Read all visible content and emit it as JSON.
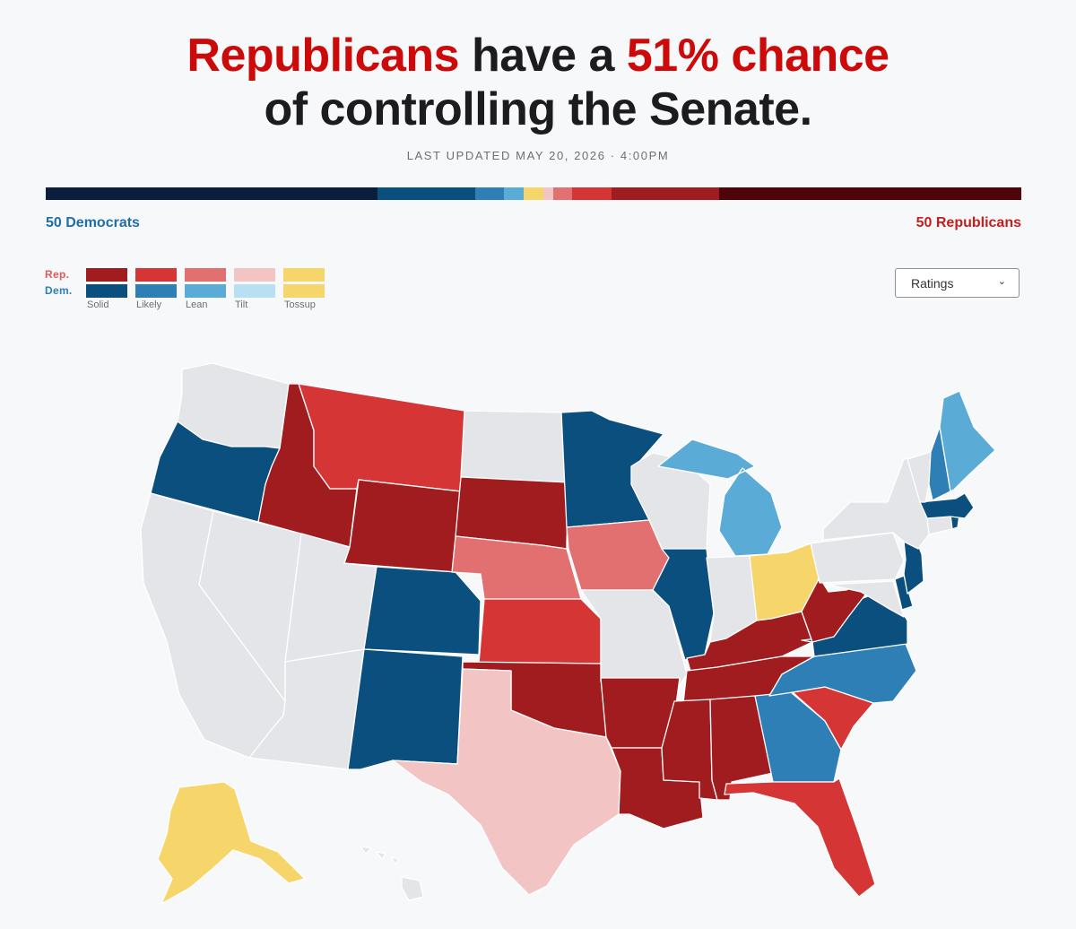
{
  "headline": {
    "line1_a": "Republicans",
    "line1_b": " have a ",
    "line1_c": "51% chance",
    "line2": "of controlling the Senate."
  },
  "last_updated": "LAST UPDATED MAY 20, 2026 · 4:00PM",
  "seat_summary": {
    "dem_label": "50 Democrats",
    "rep_label": "50 Republicans"
  },
  "legend": {
    "rep_label": "Rep.",
    "dem_label": "Dem.",
    "categories": [
      "Solid",
      "Likely",
      "Lean",
      "Tilt",
      "Tossup"
    ],
    "rep_colors": [
      "#a01c1e",
      "#d63535",
      "#e37070",
      "#f3c4c4",
      "#f6d66b"
    ],
    "dem_colors": [
      "#0b4f7e",
      "#2e7fb5",
      "#5aacd6",
      "#b8e0f3",
      "#f6d66b"
    ]
  },
  "view_select": {
    "value": "Ratings"
  },
  "colors": {
    "solid_r": "#a01c1e",
    "likely_r": "#d63535",
    "lean_r": "#e37070",
    "tilt_r": "#f3c4c4",
    "tossup": "#f6d66b",
    "solid_d": "#0b4f7e",
    "likely_d": "#2e7fb5",
    "lean_d": "#5aacd6",
    "no_race": "#e4e5e8"
  },
  "seat_bar": [
    {
      "group": "Dem. not up",
      "color": "#0a1f3d",
      "seats": 34
    },
    {
      "group": "Dem. solid",
      "color": "#0b4f7e",
      "seats": 10
    },
    {
      "group": "Dem. likely",
      "color": "#2e7fb5",
      "seats": 3
    },
    {
      "group": "Dem. lean",
      "color": "#5aacd6",
      "seats": 2
    },
    {
      "group": "Tossup",
      "color": "#f6d66b",
      "seats": 2
    },
    {
      "group": "Rep. tilt",
      "color": "#f3c4c4",
      "seats": 1
    },
    {
      "group": "Rep. lean",
      "color": "#e37070",
      "seats": 2
    },
    {
      "group": "Rep. likely",
      "color": "#d63535",
      "seats": 4
    },
    {
      "group": "Rep. solid",
      "color": "#a01c1e",
      "seats": 11
    },
    {
      "group": "Rep. not up",
      "color": "#4f0409",
      "seats": 31
    }
  ],
  "map_ratings": {
    "WA": "no_race",
    "OR": "solid_d",
    "CA": "no_race",
    "NV": "no_race",
    "AZ": "no_race",
    "UT": "no_race",
    "ID": "solid_r",
    "MT": "likely_r",
    "WY": "solid_r",
    "CO": "solid_d",
    "NM": "solid_d",
    "ND": "no_race",
    "SD": "solid_r",
    "NE": "lean_r",
    "KS": "likely_r",
    "OK": "solid_r",
    "TX": "tilt_r",
    "MN": "solid_d",
    "IA": "lean_r",
    "MO": "no_race",
    "AR": "solid_r",
    "LA": "solid_r",
    "WI": "no_race",
    "IL": "solid_d",
    "MI": "lean_d",
    "IN": "no_race",
    "OH": "tossup",
    "KY": "solid_r",
    "TN": "solid_r",
    "MS": "solid_r",
    "AL": "solid_r",
    "GA": "likely_d",
    "FL": "likely_r",
    "SC": "likely_r",
    "NC": "likely_d",
    "VA": "solid_d",
    "WV": "solid_r",
    "PA": "no_race",
    "NY": "no_race",
    "NJ": "solid_d",
    "DE": "solid_d",
    "MD": "no_race",
    "VT": "no_race",
    "NH": "likely_d",
    "ME": "lean_d",
    "MA": "solid_d",
    "RI": "solid_d",
    "CT": "no_race",
    "AK": "tossup",
    "HI": "no_race"
  }
}
